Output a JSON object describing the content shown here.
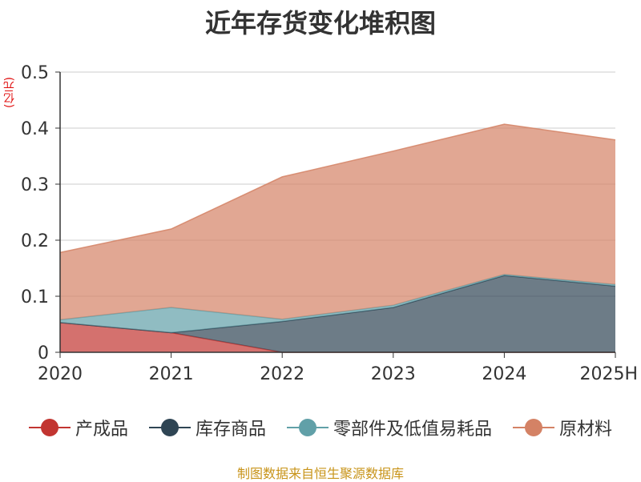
{
  "title": "近年存货变化堆积图",
  "unit_label": "(亿元)",
  "source_note": "制图数据来自恒生聚源数据库",
  "chart_data": {
    "type": "area",
    "stacked": true,
    "title": "近年存货变化堆积图",
    "ylabel": "(亿元)",
    "x": [
      "2020",
      "2021",
      "2022",
      "2023",
      "2024",
      "2025H"
    ],
    "ylim": [
      0,
      0.5
    ],
    "yticks": [
      0,
      0.1,
      0.2,
      0.3,
      0.4,
      0.5
    ],
    "ytick_labels": [
      "0",
      "0.1",
      "0.2",
      "0.3",
      "0.4",
      "0.5"
    ],
    "grid": true,
    "legend_position": "bottom",
    "series": [
      {
        "name": "产成品",
        "color": "#c23531",
        "values": [
          0.053,
          0.035,
          0.0,
          0.0,
          0.0,
          0.0
        ]
      },
      {
        "name": "库存商品",
        "color": "#2f4554",
        "values": [
          0.0,
          0.0,
          0.055,
          0.08,
          0.137,
          0.118
        ]
      },
      {
        "name": "零部件及低值易耗品",
        "color": "#61a0a8",
        "values": [
          0.005,
          0.045,
          0.004,
          0.004,
          0.002,
          0.003
        ]
      },
      {
        "name": "原材料",
        "color": "#d48265",
        "values": [
          0.12,
          0.14,
          0.254,
          0.275,
          0.268,
          0.258
        ]
      }
    ]
  }
}
